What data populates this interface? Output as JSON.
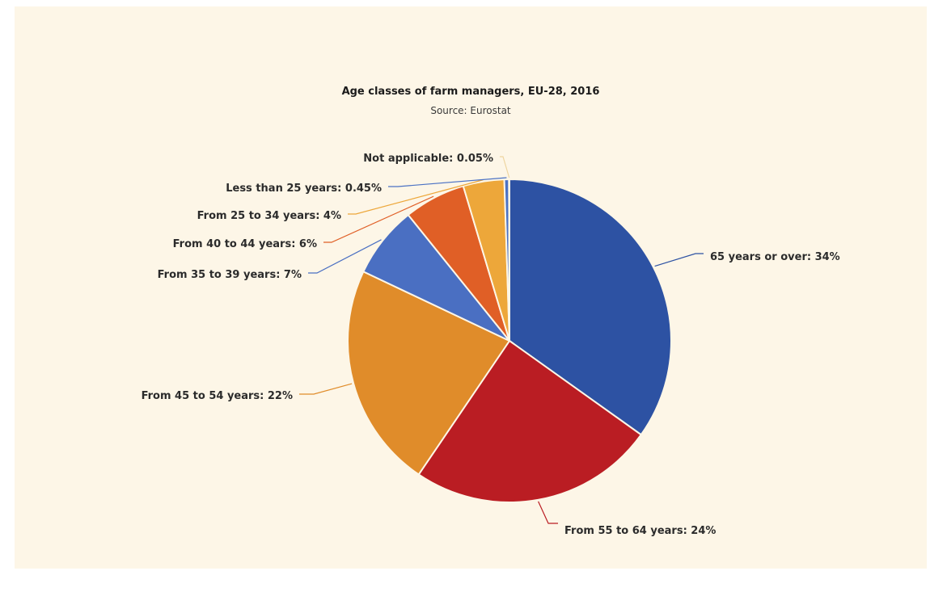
{
  "chart_data": {
    "type": "pie",
    "title": "Age classes of farm managers, EU-28, 2016",
    "subtitle": "Source: Eurostat",
    "slices": [
      {
        "label": "65 years or over",
        "value": 34,
        "display": "65 years or over: 34%",
        "color": "#2d52a3"
      },
      {
        "label": "From 55 to 64 years",
        "value": 24,
        "display": "From 55 to 64 years: 24%",
        "color": "#ba1d23"
      },
      {
        "label": "From 45 to 54 years",
        "value": 22,
        "display": "From 45 to 54 years: 22%",
        "color": "#e08c2a"
      },
      {
        "label": "From 35 to 39 years",
        "value": 7,
        "display": "From 35 to 39 years: 7%",
        "color": "#4a6fc2"
      },
      {
        "label": "From 40 to 44 years",
        "value": 6,
        "display": "From 40 to 44 years: 6%",
        "color": "#e05f26"
      },
      {
        "label": "From 25 to 34 years",
        "value": 4,
        "display": "From 25 to 34 years: 4%",
        "color": "#eda73a"
      },
      {
        "label": "Less than 25 years",
        "value": 0.45,
        "display": "Less than 25 years: 0.45%",
        "color": "#4b72c4"
      },
      {
        "label": "Not applicable",
        "value": 0.05,
        "display": "Not applicable: 0.05%",
        "color": "#eed5a0"
      }
    ]
  }
}
